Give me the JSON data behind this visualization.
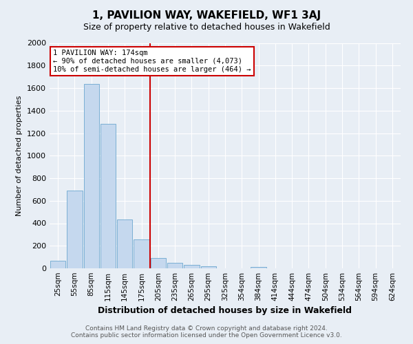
{
  "title": "1, PAVILION WAY, WAKEFIELD, WF1 3AJ",
  "subtitle": "Size of property relative to detached houses in Wakefield",
  "xlabel": "Distribution of detached houses by size in Wakefield",
  "ylabel": "Number of detached properties",
  "bar_labels": [
    "25sqm",
    "55sqm",
    "85sqm",
    "115sqm",
    "145sqm",
    "175sqm",
    "205sqm",
    "235sqm",
    "265sqm",
    "295sqm",
    "325sqm",
    "354sqm",
    "384sqm",
    "414sqm",
    "444sqm",
    "474sqm",
    "504sqm",
    "534sqm",
    "564sqm",
    "594sqm",
    "624sqm"
  ],
  "bar_values": [
    65,
    690,
    1635,
    1285,
    435,
    255,
    90,
    50,
    30,
    20,
    0,
    0,
    15,
    0,
    0,
    0,
    0,
    0,
    0,
    0,
    0
  ],
  "bar_color": "#c5d8ee",
  "bar_edgecolor": "#7aafd4",
  "vline_x_index": 5.5,
  "vline_color": "#cc0000",
  "annotation_line1": "1 PAVILION WAY: 174sqm",
  "annotation_line2": "← 90% of detached houses are smaller (4,073)",
  "annotation_line3": "10% of semi-detached houses are larger (464) →",
  "annotation_box_edgecolor": "#cc0000",
  "ylim": [
    0,
    2000
  ],
  "yticks": [
    0,
    200,
    400,
    600,
    800,
    1000,
    1200,
    1400,
    1600,
    1800,
    2000
  ],
  "footer_line1": "Contains HM Land Registry data © Crown copyright and database right 2024.",
  "footer_line2": "Contains public sector information licensed under the Open Government Licence v3.0.",
  "bg_color": "#e8eef5",
  "plot_bg_color": "#e8eef5",
  "grid_color": "#ffffff",
  "title_fontsize": 11,
  "subtitle_fontsize": 9,
  "xlabel_fontsize": 9,
  "ylabel_fontsize": 8,
  "tick_fontsize": 8,
  "xtick_fontsize": 7.5,
  "footer_fontsize": 6.5
}
